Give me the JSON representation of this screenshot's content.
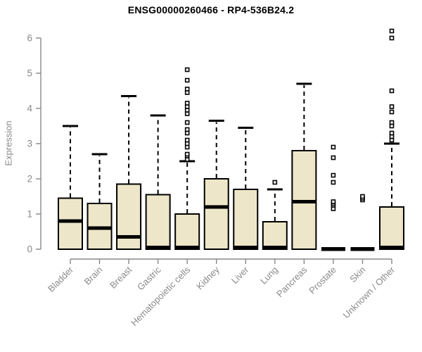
{
  "chart": {
    "title": "ENSG00000260466 - RP4-536B24.2",
    "ylabel": "Expression"
  },
  "chart_data": {
    "type": "boxplot",
    "title": "ENSG00000260466 - RP4-536B24.2",
    "xlabel": "",
    "ylabel": "Expression",
    "ylim": [
      0,
      6
    ],
    "yticks": [
      0,
      1,
      2,
      3,
      4,
      5,
      6
    ],
    "grid": false,
    "legend": "none",
    "categories": [
      "Bladder",
      "Brain",
      "Breast",
      "Gastric",
      "Hematopoietic cells",
      "Kidney",
      "Liver",
      "Lung",
      "Pancreas",
      "Prostate",
      "Skin",
      "Unknown / Other"
    ],
    "boxes": [
      {
        "category": "Bladder",
        "q1": 0,
        "median": 0.8,
        "q3": 1.45,
        "whisker_low": 0,
        "whisker_high": 3.5,
        "outliers": []
      },
      {
        "category": "Brain",
        "q1": 0,
        "median": 0.6,
        "q3": 1.3,
        "whisker_low": 0,
        "whisker_high": 2.7,
        "outliers": []
      },
      {
        "category": "Breast",
        "q1": 0,
        "median": 0.35,
        "q3": 1.85,
        "whisker_low": 0,
        "whisker_high": 4.35,
        "outliers": []
      },
      {
        "category": "Gastric",
        "q1": 0,
        "median": 0.05,
        "q3": 1.55,
        "whisker_low": 0,
        "whisker_high": 3.8,
        "outliers": []
      },
      {
        "category": "Hematopoietic cells",
        "q1": 0,
        "median": 0.05,
        "q3": 1.0,
        "whisker_low": 0,
        "whisker_high": 2.5,
        "outliers": [
          2.55,
          2.65,
          2.7,
          2.9,
          3.0,
          3.1,
          3.3,
          3.4,
          3.6,
          3.85,
          3.95,
          4.05,
          4.15,
          4.45,
          4.55,
          4.8,
          5.1
        ]
      },
      {
        "category": "Kidney",
        "q1": 0,
        "median": 1.2,
        "q3": 2.0,
        "whisker_low": 0,
        "whisker_high": 3.65,
        "outliers": []
      },
      {
        "category": "Liver",
        "q1": 0,
        "median": 0.05,
        "q3": 1.7,
        "whisker_low": 0,
        "whisker_high": 3.45,
        "outliers": []
      },
      {
        "category": "Lung",
        "q1": 0,
        "median": 0.05,
        "q3": 0.78,
        "whisker_low": 0,
        "whisker_high": 1.7,
        "outliers": [
          1.9
        ]
      },
      {
        "category": "Pancreas",
        "q1": 0,
        "median": 1.35,
        "q3": 2.8,
        "whisker_low": 0,
        "whisker_high": 4.7,
        "outliers": []
      },
      {
        "category": "Prostate",
        "q1": 0,
        "median": 0.02,
        "q3": 0.04,
        "whisker_low": 0,
        "whisker_high": 0.04,
        "outliers": [
          1.15,
          1.25,
          1.3,
          1.35,
          1.9,
          2.1,
          2.6,
          2.9
        ]
      },
      {
        "category": "Skin",
        "q1": 0,
        "median": 0.02,
        "q3": 0.04,
        "whisker_low": 0,
        "whisker_high": 0.04,
        "outliers": [
          1.4,
          1.45,
          1.5
        ]
      },
      {
        "category": "Unknown / Other",
        "q1": 0,
        "median": 0.05,
        "q3": 1.2,
        "whisker_low": 0,
        "whisker_high": 3.0,
        "outliers": [
          3.1,
          3.2,
          3.3,
          3.5,
          3.6,
          3.9,
          4.05,
          4.5,
          6.0,
          6.2
        ]
      }
    ],
    "colors": {
      "box_fill": "#EDE6C8",
      "box_border": "#000000",
      "median": "#000000",
      "whisker": "#000000",
      "outlier": "#000000",
      "axis": "#888888",
      "tick_label": "#8a8a8a",
      "title": "#000000",
      "background": "#ffffff"
    }
  }
}
